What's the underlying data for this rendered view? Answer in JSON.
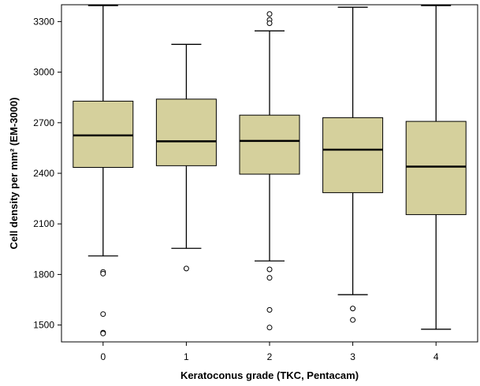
{
  "chart_data": {
    "type": "box",
    "xlabel": "Keratoconus grade (TKC, Pentacam)",
    "ylabel": "Cell density per mm² (EM-3000)",
    "ylim": [
      1400,
      3400
    ],
    "yticks": [
      "1500",
      "1800",
      "2100",
      "2400",
      "2700",
      "3000",
      "3300"
    ],
    "categories": [
      "0",
      "1",
      "2",
      "3",
      "4"
    ],
    "box_color": "#d5d09c",
    "grid": false,
    "boxes": [
      {
        "category": "0",
        "whisker_low": 1910,
        "q1": 2435,
        "median": 2625,
        "q3": 2828,
        "whisker_high": 3395,
        "outliers": [
          1815,
          1805,
          1565,
          1455,
          1450
        ]
      },
      {
        "category": "1",
        "whisker_low": 1955,
        "q1": 2445,
        "median": 2590,
        "q3": 2840,
        "whisker_high": 3165,
        "outliers": [
          1835
        ]
      },
      {
        "category": "2",
        "whisker_low": 1880,
        "q1": 2395,
        "median": 2592,
        "q3": 2745,
        "whisker_high": 3245,
        "outliers": [
          3345,
          3310,
          3290,
          1830,
          1780,
          1590,
          1485
        ]
      },
      {
        "category": "3",
        "whisker_low": 1680,
        "q1": 2285,
        "median": 2540,
        "q3": 2730,
        "whisker_high": 3385,
        "outliers": [
          1598,
          1530
        ]
      },
      {
        "category": "4",
        "whisker_low": 1475,
        "q1": 2155,
        "median": 2440,
        "q3": 2708,
        "whisker_high": 3395,
        "outliers": []
      }
    ]
  }
}
